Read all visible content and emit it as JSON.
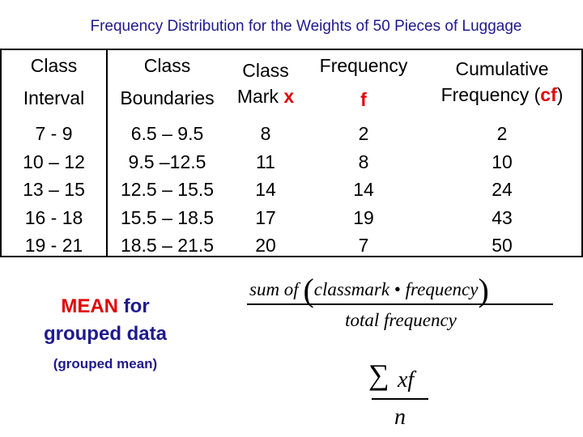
{
  "title": "Frequency Distribution for the Weights of 50 Pieces of Luggage",
  "table": {
    "headers": {
      "class_interval": [
        "Class",
        "Interval"
      ],
      "class_boundaries": [
        "Class",
        "Boundaries"
      ],
      "class_mark": [
        "Class",
        "Mark",
        "x"
      ],
      "frequency": [
        "Frequency",
        "f"
      ],
      "cumulative": [
        "Cumulative",
        "Frequency (",
        "cf",
        ")"
      ]
    },
    "columns": {
      "class_interval": [
        "7  -  9",
        "10  – 12",
        "13  – 15",
        "16  - 18",
        "19 -  21"
      ],
      "class_boundaries": [
        "6.5 – 9.5",
        "9.5  –12.5",
        "12.5 – 15.5",
        "15.5 – 18.5",
        "18.5 – 21.5"
      ],
      "class_mark": [
        "8",
        "11",
        "14",
        "17",
        "20"
      ],
      "frequency": [
        "2",
        "8",
        "14",
        "19",
        "7"
      ],
      "cumulative": [
        "2",
        "10",
        "24",
        "43",
        "50"
      ]
    }
  },
  "mean_block": {
    "line1_red": "MEAN",
    "line1_blue": "for",
    "line2": "grouped data",
    "sub": "(grouped mean)"
  },
  "formula": {
    "numerator_lead": "sum of",
    "numerator_a": "classmark",
    "dot": "•",
    "numerator_b": "frequency",
    "denominator": "total  frequency"
  },
  "formula2": {
    "sigma": "∑",
    "numerator": "xf",
    "denominator": "n"
  },
  "colors": {
    "title": "#1f1a8c",
    "accent": "#e00000"
  }
}
